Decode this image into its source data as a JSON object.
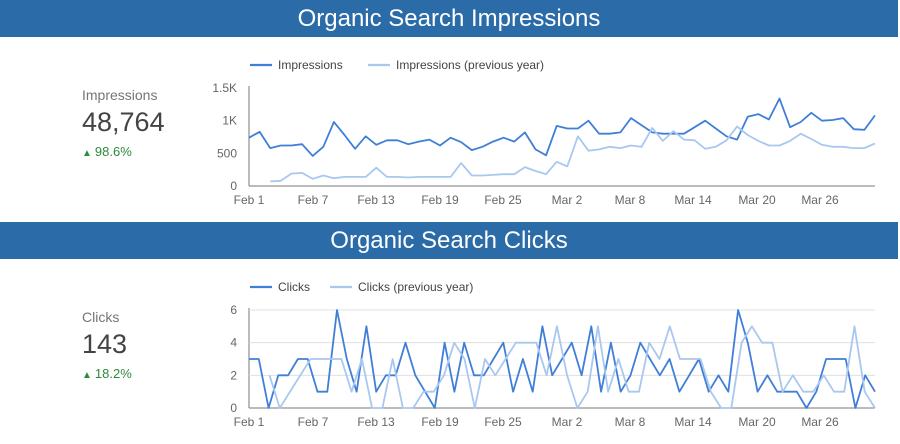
{
  "sections": [
    {
      "banner": "Organic Search Impressions",
      "scorecard": {
        "label": "Impressions",
        "value": "48,764",
        "delta": "98.6%"
      }
    },
    {
      "banner": "Organic Search Clicks",
      "scorecard": {
        "label": "Clicks",
        "value": "143",
        "delta": "18.2%"
      }
    }
  ],
  "colors": {
    "banner": "#2a6ba8",
    "current": "#3f7fd8",
    "previous": "#a9c8f0",
    "delta": "#2e8b3a"
  },
  "chart_data": [
    {
      "type": "line",
      "x_tick_labels": [
        "Feb 1",
        "Feb 7",
        "Feb 13",
        "Feb 19",
        "Feb 25",
        "Mar 2",
        "Mar 8",
        "Mar 14",
        "Mar 20",
        "Mar 26"
      ],
      "y_tick_labels": [
        "0",
        "500",
        "1K",
        "1.5K"
      ],
      "ylim": [
        0,
        1500
      ],
      "legend_position": "top",
      "grid": false,
      "series": [
        {
          "name": "Impressions",
          "values": [
            740,
            830,
            580,
            620,
            620,
            640,
            460,
            600,
            980,
            780,
            570,
            760,
            630,
            700,
            700,
            640,
            680,
            710,
            620,
            740,
            670,
            550,
            600,
            680,
            740,
            680,
            820,
            560,
            470,
            920,
            880,
            880,
            1000,
            800,
            800,
            820,
            1040,
            930,
            820,
            800,
            800,
            800,
            900,
            1000,
            880,
            760,
            710,
            1060,
            1100,
            1020,
            1340,
            900,
            980,
            1120,
            1000,
            1010,
            1040,
            870,
            860,
            1080
          ]
        },
        {
          "name": "Impressions (previous year)",
          "values": [
            null,
            null,
            70,
            80,
            190,
            200,
            110,
            160,
            120,
            140,
            140,
            140,
            280,
            140,
            140,
            130,
            140,
            140,
            140,
            140,
            350,
            160,
            160,
            170,
            180,
            180,
            290,
            230,
            180,
            370,
            300,
            760,
            540,
            560,
            600,
            580,
            620,
            600,
            890,
            690,
            840,
            710,
            700,
            570,
            600,
            700,
            910,
            780,
            690,
            620,
            620,
            690,
            800,
            720,
            630,
            600,
            600,
            580,
            580,
            650
          ]
        }
      ]
    },
    {
      "type": "line",
      "x_tick_labels": [
        "Feb 1",
        "Feb 7",
        "Feb 13",
        "Feb 19",
        "Feb 25",
        "Mar 2",
        "Mar 8",
        "Mar 14",
        "Mar 20",
        "Mar 26"
      ],
      "y_tick_labels": [
        "0",
        "2",
        "4",
        "6"
      ],
      "ylim": [
        0,
        6
      ],
      "legend_position": "top",
      "grid": true,
      "series": [
        {
          "name": "Clicks",
          "values": [
            3,
            3,
            0,
            2,
            2,
            3,
            3,
            1,
            1,
            6,
            3,
            1,
            5,
            1,
            2,
            2,
            4,
            2,
            1,
            0,
            4,
            1,
            4,
            2,
            2,
            3,
            4,
            1,
            3,
            1,
            5,
            2,
            3,
            4,
            2,
            5,
            1,
            4,
            1,
            2,
            4,
            3,
            2,
            3,
            1,
            2,
            3,
            1,
            2,
            1,
            6,
            4,
            1,
            2,
            1,
            1,
            1,
            0,
            1,
            3,
            3,
            3,
            0,
            2,
            1
          ]
        },
        {
          "name": "Clicks (previous year)",
          "values": [
            null,
            null,
            2,
            0,
            1,
            2,
            3,
            3,
            3,
            3,
            1,
            3,
            0,
            0,
            3,
            0,
            0,
            1,
            1,
            2,
            4,
            3,
            0,
            3,
            2,
            3,
            4,
            4,
            4,
            2,
            5,
            2,
            0,
            1,
            5,
            1,
            3,
            1,
            1,
            4,
            3,
            5,
            3,
            3,
            3,
            1,
            0,
            0,
            4,
            5,
            4,
            4,
            1,
            2,
            1,
            1,
            2,
            1,
            1,
            5,
            1,
            0
          ]
        }
      ]
    }
  ]
}
